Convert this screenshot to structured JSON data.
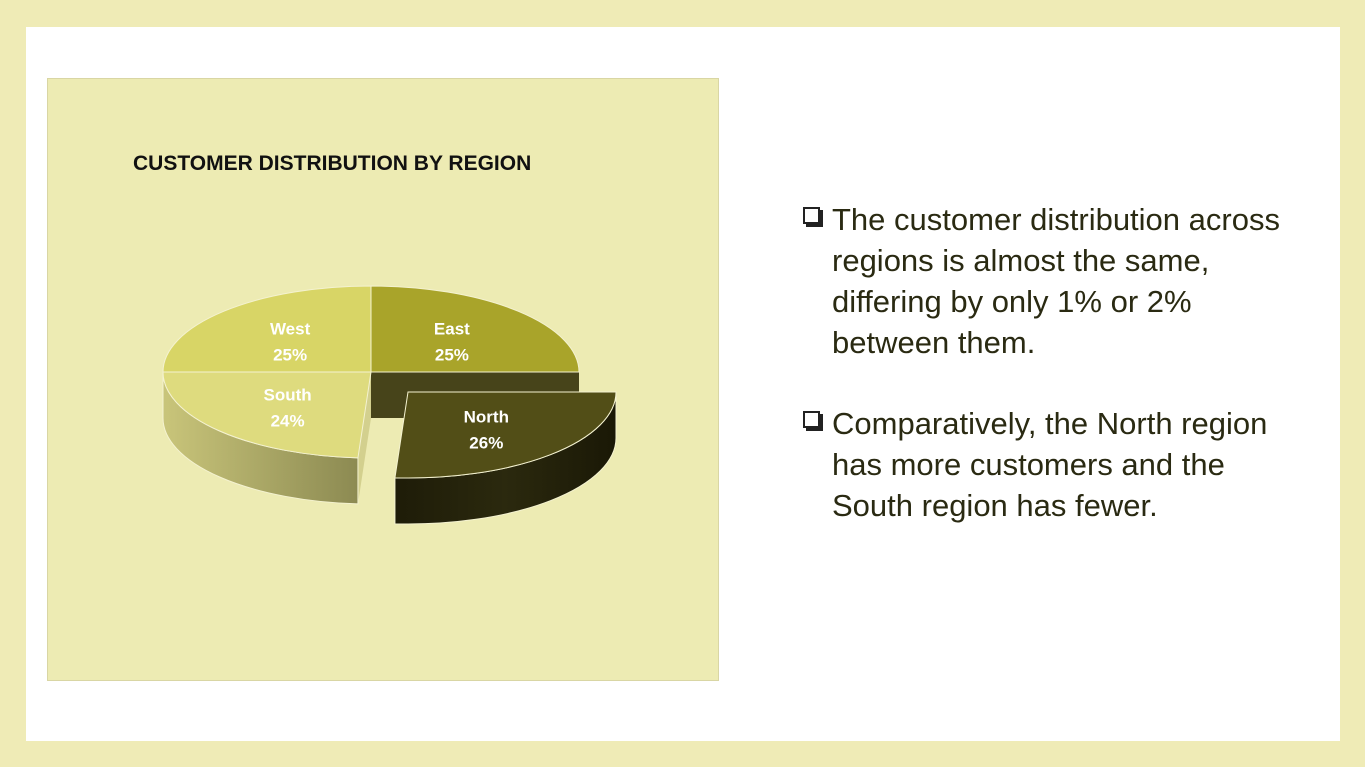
{
  "slide": {
    "bullets": [
      "The customer distribution across regions is almost the same, differing by only 1% or 2% between them.",
      "Comparatively, the North region has more customers and the South region has fewer."
    ]
  },
  "chart_data": {
    "type": "pie",
    "style": "3D exploded",
    "title": "CUSTOMER DISTRIBUTION BY REGION",
    "categories": [
      "East",
      "North",
      "South",
      "West"
    ],
    "values": [
      25,
      26,
      24,
      25
    ],
    "value_labels": [
      "25%",
      "26%",
      "24%",
      "25%"
    ],
    "exploded": [
      "North"
    ],
    "legend": "none",
    "colors": {
      "East": "#A9A42A",
      "North": "#524E17",
      "South": "#DEDB7E",
      "West": "#D8D566",
      "background": "#EDEBB3"
    }
  }
}
